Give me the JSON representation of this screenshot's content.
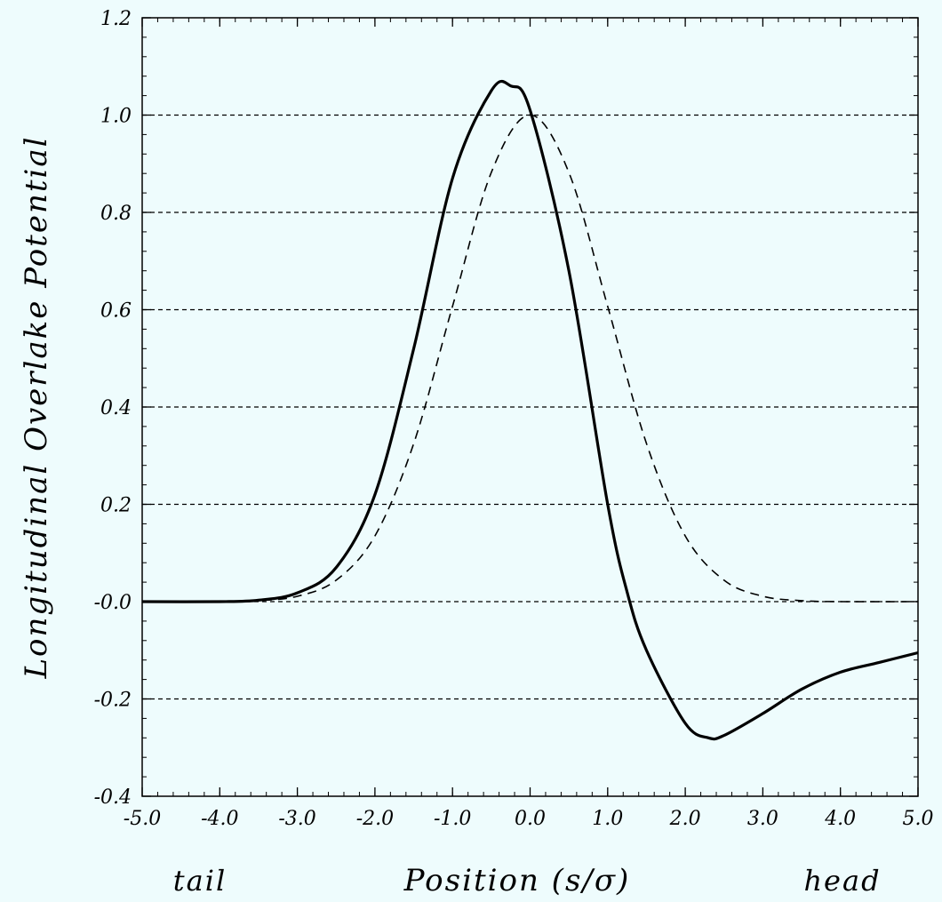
{
  "chart_data": {
    "type": "line",
    "title": "",
    "xlabel": "Position (s/σ)",
    "ylabel": "Longitudinal Overlake Potential",
    "x_end_labels": {
      "left": "tail",
      "right": "head"
    },
    "xlim": [
      -5.0,
      5.0
    ],
    "ylim": [
      -0.4,
      1.2
    ],
    "xticks": [
      -5,
      -4,
      -3,
      -2,
      -1,
      0,
      1,
      2,
      3,
      4,
      5
    ],
    "xtick_labels": [
      "-5.0",
      "-4.0",
      "-3.0",
      "-2.0",
      "-1.0",
      "0.0",
      "1.0",
      "2.0",
      "3.0",
      "4.0",
      "5.0"
    ],
    "yticks": [
      -0.4,
      -0.2,
      0.0,
      0.2,
      0.4,
      0.6,
      0.8,
      1.0,
      1.2
    ],
    "ytick_labels": [
      "-0.4",
      "-0.2",
      "-0.0",
      "0.2",
      "0.4",
      "0.6",
      "0.8",
      "1.0",
      "1.2"
    ],
    "grid": "horizontal-dashed",
    "series": [
      {
        "style": "solid",
        "color": "#000000",
        "x": [
          -5.0,
          -4.0,
          -3.5,
          -3.0,
          -2.5,
          -2.0,
          -1.5,
          -1.0,
          -0.5,
          -0.25,
          0.0,
          0.5,
          1.0,
          1.25,
          1.5,
          2.0,
          2.3,
          2.5,
          3.0,
          3.5,
          4.0,
          4.5,
          5.0
        ],
        "y": [
          0.0,
          0.0,
          0.003,
          0.018,
          0.07,
          0.22,
          0.52,
          0.87,
          1.05,
          1.06,
          1.01,
          0.68,
          0.2,
          0.02,
          -0.1,
          -0.25,
          -0.28,
          -0.275,
          -0.23,
          -0.18,
          -0.145,
          -0.125,
          -0.105
        ]
      },
      {
        "style": "dashed",
        "color": "#000000",
        "x": [
          -5.0,
          -4.0,
          -3.5,
          -3.0,
          -2.5,
          -2.0,
          -1.5,
          -1.0,
          -0.5,
          0.0,
          0.5,
          1.0,
          1.5,
          2.0,
          2.5,
          3.0,
          3.5,
          4.0,
          5.0
        ],
        "y": [
          0.0,
          0.0,
          0.002,
          0.011,
          0.044,
          0.135,
          0.325,
          0.607,
          0.882,
          1.0,
          0.882,
          0.607,
          0.325,
          0.135,
          0.044,
          0.011,
          0.002,
          0.0,
          0.0
        ]
      }
    ]
  }
}
